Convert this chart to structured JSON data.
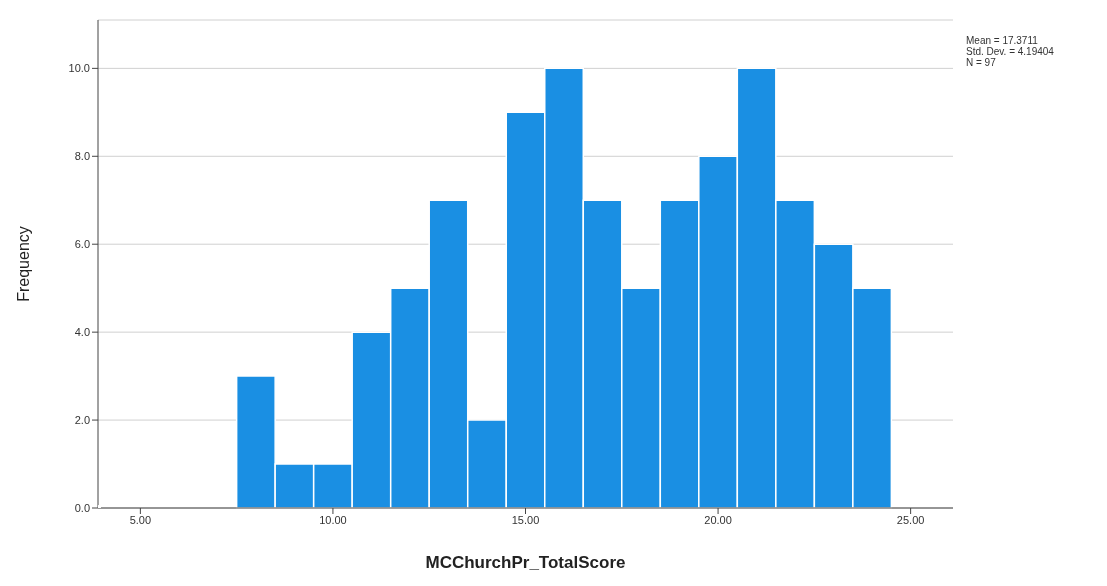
{
  "chart_data": {
    "type": "histogram",
    "xlabel": "MCChurchPr_TotalScore",
    "ylabel": "Frequency",
    "bins": [
      7.5,
      8.5,
      9.5,
      10.5,
      11.5,
      12.5,
      13.5,
      14.5,
      15.5,
      16.5,
      17.5,
      18.5,
      19.5,
      20.5,
      21.5,
      22.5,
      23.5,
      24.5
    ],
    "values": [
      3,
      1,
      1,
      4,
      5,
      7,
      2,
      9,
      10,
      7,
      5,
      7,
      8,
      10,
      7,
      6,
      5
    ],
    "color": "#1a8fe3",
    "xlim": [
      3.9,
      26.1
    ],
    "xticks": [
      {
        "value": 5,
        "label": "5.00"
      },
      {
        "value": 10,
        "label": "10.00"
      },
      {
        "value": 15,
        "label": "15.00"
      },
      {
        "value": 20,
        "label": "20.00"
      },
      {
        "value": 25,
        "label": "25.00"
      }
    ],
    "ylim": [
      0,
      11.1
    ],
    "yticks": [
      {
        "value": 0,
        "label": "0.0"
      },
      {
        "value": 2,
        "label": "2.0"
      },
      {
        "value": 4,
        "label": "4.0"
      },
      {
        "value": 6,
        "label": "6.0"
      },
      {
        "value": 8,
        "label": "8.0"
      },
      {
        "value": 10,
        "label": "10.0"
      }
    ],
    "grid": "y",
    "annotations": [
      "Mean = 17.3711",
      "Std. Dev. = 4.19404",
      "N = 97"
    ]
  }
}
